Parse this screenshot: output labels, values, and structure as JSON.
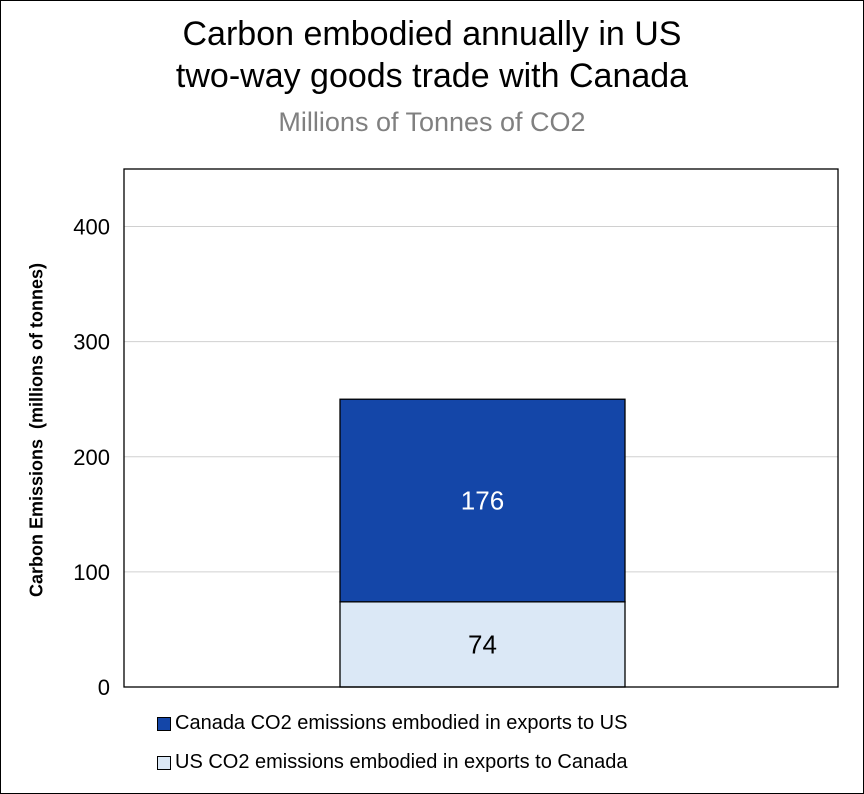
{
  "chart_data": {
    "type": "bar",
    "stacked": true,
    "title": "Carbon embodied annually in US two-way goods trade with Canada",
    "title_lines": [
      "Carbon embodied annually in US",
      "two-way goods trade with Canada"
    ],
    "subtitle": "Millions of Tonnes of CO2",
    "ylabel": "Carbon Emissions  (millions of tonnes)",
    "xlabel": "",
    "categories": [
      ""
    ],
    "ylim": [
      0,
      450
    ],
    "yticks": [
      0,
      100,
      200,
      300,
      400
    ],
    "grid": true,
    "legend_position": "bottom",
    "series": [
      {
        "name": "US CO2 emissions embodied in exports to Canada",
        "values": [
          74
        ],
        "color": "#dbe8f6",
        "label_color": "#000000"
      },
      {
        "name": "Canada CO2 emissions embodied in exports to US",
        "values": [
          176
        ],
        "color": "#1446a8",
        "label_color": "#ffffff"
      }
    ],
    "legend_order": [
      1,
      0
    ]
  }
}
